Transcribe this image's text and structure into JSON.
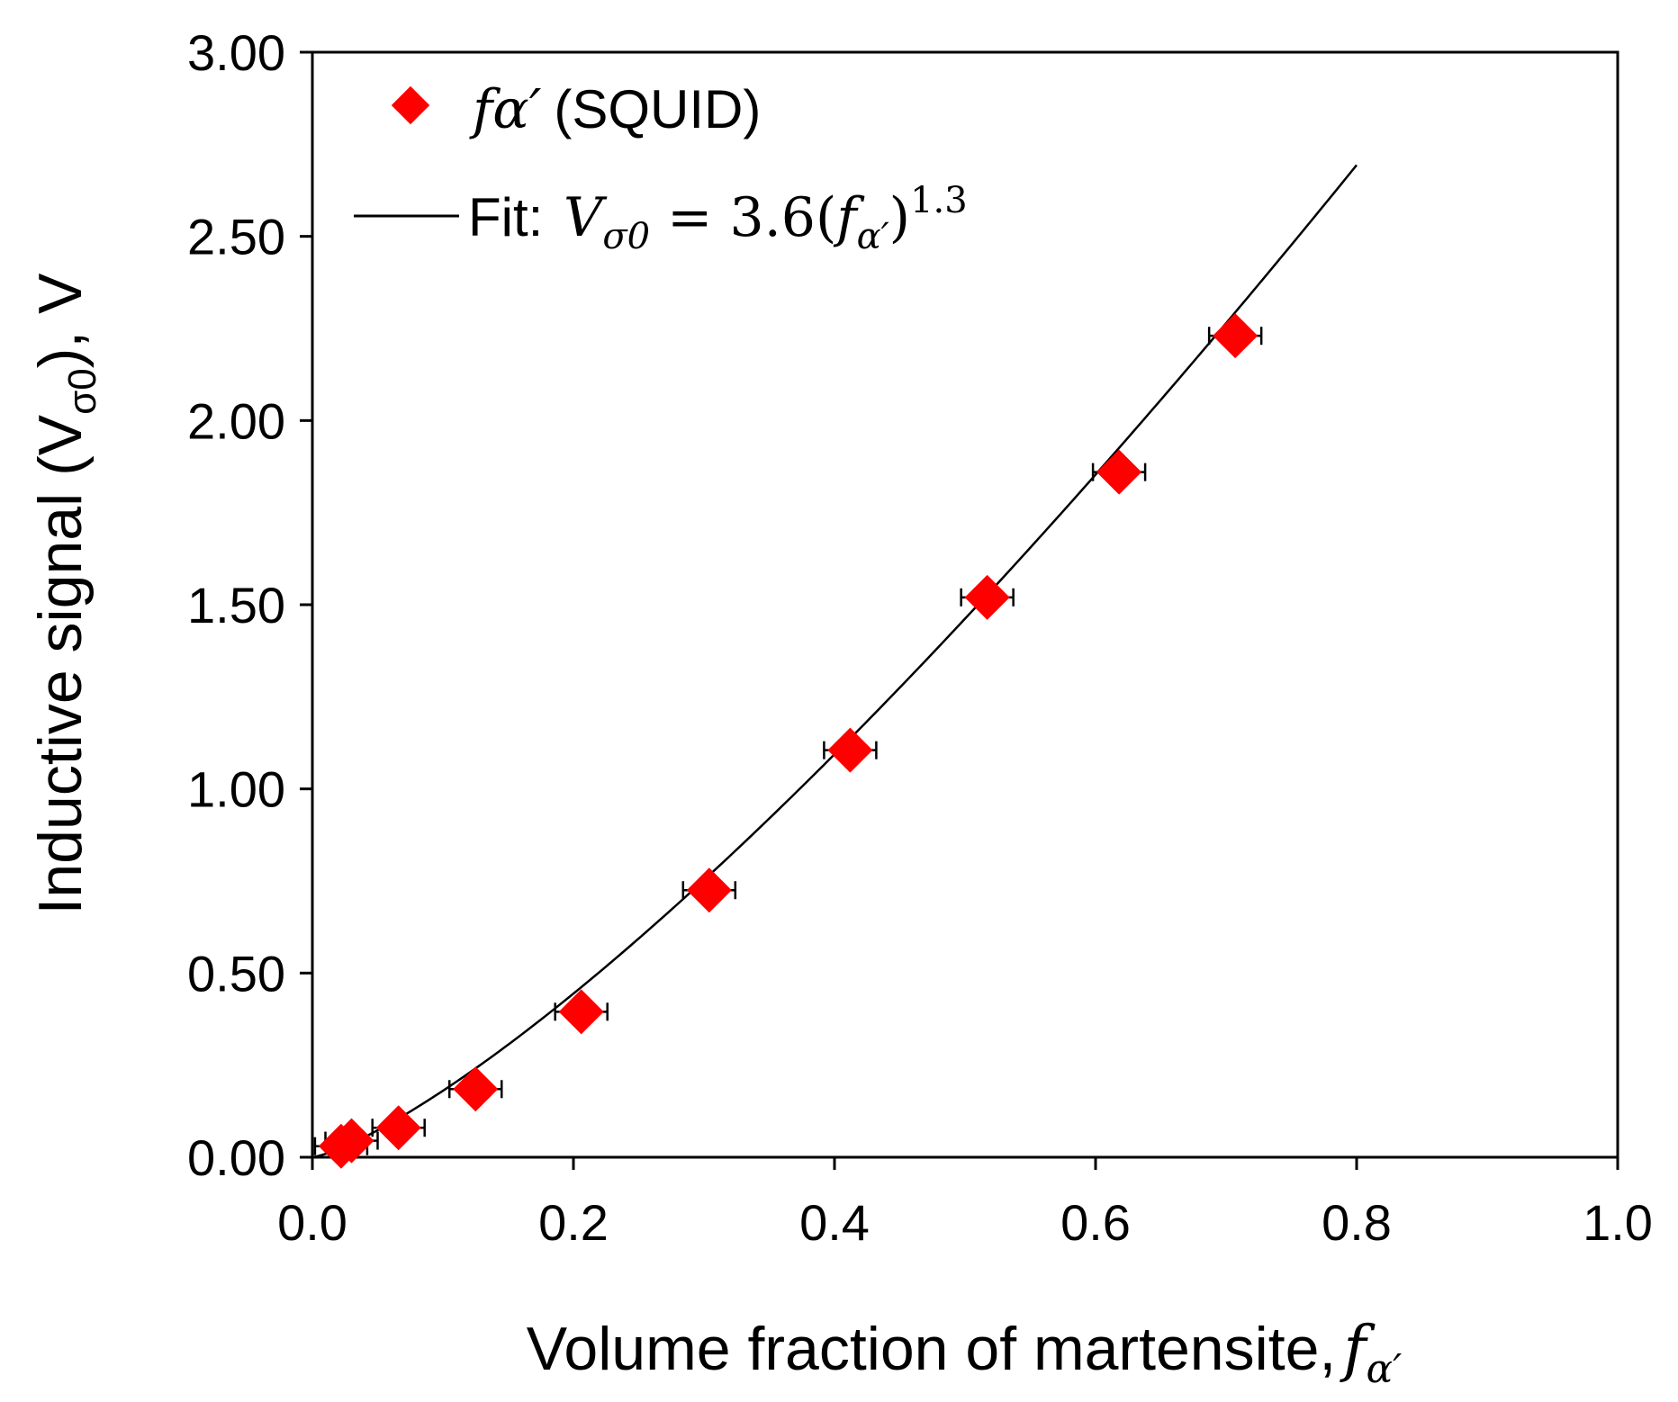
{
  "chart_data": {
    "type": "scatter",
    "title": "",
    "xlabel": "Volume fraction of martensite,",
    "xlabel_symbol": "f",
    "xlabel_symbol_sub": "α′",
    "ylabel_prefix": "Inductive signal (",
    "ylabel_symbol": "V",
    "ylabel_sub": "σ0",
    "ylabel_suffix": "), V",
    "xlim": [
      0.0,
      1.0
    ],
    "ylim": [
      0.0,
      3.0
    ],
    "x_ticks": [
      0.0,
      0.2,
      0.4,
      0.6,
      0.8,
      1.0
    ],
    "x_tick_labels": [
      "0.0",
      "0.2",
      "0.4",
      "0.6",
      "0.8",
      "1.0"
    ],
    "y_ticks": [
      0.0,
      0.5,
      1.0,
      1.5,
      2.0,
      2.5,
      3.0
    ],
    "y_tick_labels": [
      "0.00",
      "0.50",
      "1.00",
      "1.50",
      "2.00",
      "2.50",
      "3.00"
    ],
    "grid": false,
    "legend_position": "top-left",
    "colors": {
      "marker": "#ff0000",
      "line": "#000000",
      "axis": "#000000"
    },
    "series": [
      {
        "name": "fα′ (SQUID)",
        "legend_symbol": "f",
        "legend_greek": "α′",
        "legend_text": "(SQUID)",
        "kind": "scatter",
        "marker": "diamond",
        "points": [
          {
            "x": 0.022,
            "y": 0.03,
            "xerr": 0.02
          },
          {
            "x": 0.03,
            "y": 0.045,
            "xerr": 0.02
          },
          {
            "x": 0.066,
            "y": 0.08,
            "xerr": 0.02
          },
          {
            "x": 0.125,
            "y": 0.185,
            "xerr": 0.02
          },
          {
            "x": 0.206,
            "y": 0.395,
            "xerr": 0.02
          },
          {
            "x": 0.304,
            "y": 0.725,
            "xerr": 0.02
          },
          {
            "x": 0.412,
            "y": 1.105,
            "xerr": 0.02
          },
          {
            "x": 0.517,
            "y": 1.52,
            "xerr": 0.02
          },
          {
            "x": 0.618,
            "y": 1.86,
            "xerr": 0.02
          },
          {
            "x": 0.707,
            "y": 2.23,
            "xerr": 0.02
          }
        ]
      },
      {
        "name": "Fit: Vσ0 = 3.6(fα′)^1.3",
        "kind": "line",
        "legend_prefix": "Fit: ",
        "legend_lhs": "V",
        "legend_lhs_sub": "σ0",
        "legend_eq": " = 3.6(",
        "legend_f": "f",
        "legend_f_sub": "α′",
        "legend_close": ")",
        "legend_exp": "1.3",
        "coefficient": 3.6,
        "exponent": 1.3,
        "x_range": [
          0.0,
          0.8
        ]
      }
    ]
  }
}
